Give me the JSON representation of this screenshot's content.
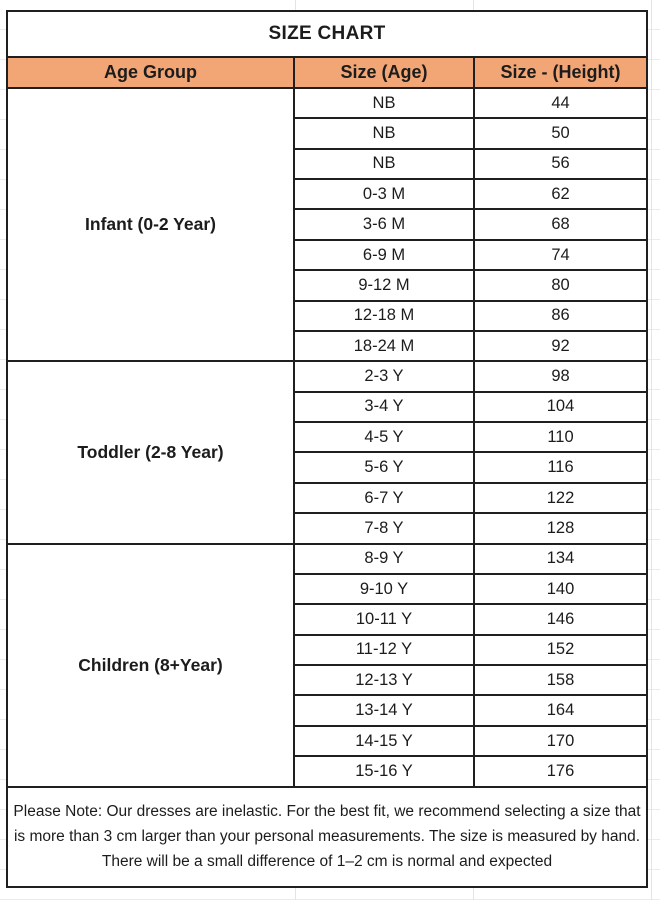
{
  "title": "SIZE CHART",
  "columns": {
    "age_group": "Age Group",
    "size_age": "Size (Age)",
    "size_height": "Size - (Height)"
  },
  "groups": [
    {
      "label": "Infant (0-2 Year)",
      "rows": [
        {
          "size": "NB",
          "height": "44"
        },
        {
          "size": "NB",
          "height": "50"
        },
        {
          "size": "NB",
          "height": "56"
        },
        {
          "size": "0-3 M",
          "height": "62"
        },
        {
          "size": "3-6 M",
          "height": "68"
        },
        {
          "size": "6-9 M",
          "height": "74"
        },
        {
          "size": "9-12 M",
          "height": "80"
        },
        {
          "size": "12-18 M",
          "height": "86"
        },
        {
          "size": "18-24 M",
          "height": "92"
        }
      ]
    },
    {
      "label": "Toddler (2-8 Year)",
      "rows": [
        {
          "size": "2-3 Y",
          "height": "98"
        },
        {
          "size": "3-4 Y",
          "height": "104"
        },
        {
          "size": "4-5 Y",
          "height": "110"
        },
        {
          "size": "5-6 Y",
          "height": "116"
        },
        {
          "size": "6-7 Y",
          "height": "122"
        },
        {
          "size": "7-8 Y",
          "height": "128"
        }
      ]
    },
    {
      "label": "Children (8+Year)",
      "rows": [
        {
          "size": "8-9 Y",
          "height": "134"
        },
        {
          "size": "9-10 Y",
          "height": "140"
        },
        {
          "size": "10-11 Y",
          "height": "146"
        },
        {
          "size": "11-12 Y",
          "height": "152"
        },
        {
          "size": "12-13 Y",
          "height": "158"
        },
        {
          "size": "13-14 Y",
          "height": "164"
        },
        {
          "size": "14-15 Y",
          "height": "170"
        },
        {
          "size": "15-16 Y",
          "height": "176"
        }
      ]
    }
  ],
  "note": "Please Note: Our dresses are inelastic. For the best fit, we recommend selecting a size that is more than 3 cm larger than your personal measurements. The size is measured by hand. There will be a small difference of 1–2 cm is normal and expected",
  "colors": {
    "header_bg": "#F2A575",
    "border": "#1f1f1f",
    "text": "#1c1c1c"
  }
}
